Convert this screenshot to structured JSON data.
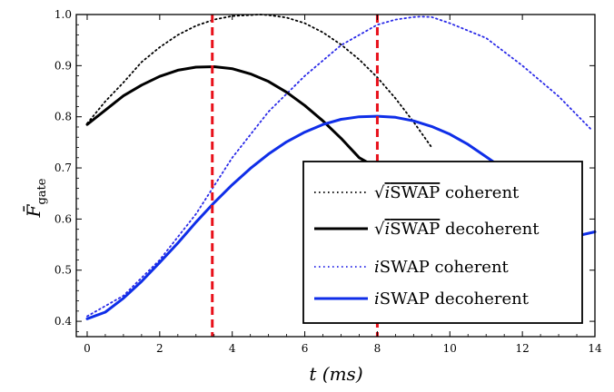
{
  "chart_data": {
    "type": "line",
    "xlabel": "t (ms)",
    "ylabel": "F̄ gate",
    "ylabel_base": "F̄",
    "ylabel_sub": "gate",
    "xlabel_var": "t",
    "xlabel_unit": "(ms)",
    "xlim": [
      -0.3,
      14
    ],
    "ylim": [
      0.37,
      1.0
    ],
    "xticks": [
      0,
      2,
      4,
      6,
      8,
      10,
      12,
      14
    ],
    "yticks": [
      0.4,
      0.5,
      0.6,
      0.7,
      0.8,
      0.9,
      1.0
    ],
    "ytick_labels": [
      "0.4",
      "0.5",
      "0.6",
      "0.7",
      "0.8",
      "0.9",
      "1.0"
    ],
    "grid": false,
    "legend_position": "bottom-right",
    "vlines": [
      {
        "x": 3.45,
        "color": "#e8101a",
        "style": "dashed"
      },
      {
        "x": 8.0,
        "color": "#e8101a",
        "style": "dashed"
      }
    ],
    "series": [
      {
        "name": "√iSWAP coherent",
        "name_radicand_italic": "i",
        "name_radicand_rest": "SWAP",
        "name_suffix": " coherent",
        "radical": true,
        "color": "#000000",
        "style": "dotted",
        "x": [
          0,
          0.5,
          1,
          1.5,
          2,
          2.5,
          3,
          3.5,
          4,
          4.5,
          4.75,
          5,
          5.5,
          6,
          6.5,
          7,
          7.5,
          8,
          8.5,
          9,
          9.5
        ],
        "y": [
          0.787,
          0.83,
          0.867,
          0.907,
          0.936,
          0.96,
          0.978,
          0.99,
          0.997,
          0.999,
          1.0,
          0.999,
          0.994,
          0.983,
          0.965,
          0.941,
          0.912,
          0.877,
          0.836,
          0.79,
          0.74
        ]
      },
      {
        "name": "√iSWAP decoherent",
        "name_radicand_italic": "i",
        "name_radicand_rest": "SWAP",
        "name_suffix": " decoherent",
        "radical": true,
        "color": "#000000",
        "style": "solid",
        "x": [
          0,
          0.5,
          1,
          1.5,
          2,
          2.5,
          3,
          3.5,
          4,
          4.5,
          5,
          5.5,
          6,
          6.5,
          7,
          7.5,
          8,
          8.2
        ],
        "y": [
          0.785,
          0.813,
          0.841,
          0.862,
          0.879,
          0.891,
          0.897,
          0.898,
          0.894,
          0.884,
          0.869,
          0.848,
          0.822,
          0.792,
          0.758,
          0.72,
          0.7,
          0.693
        ]
      },
      {
        "name": "iSWAP coherent",
        "name_italic": "i",
        "name_rest": "SWAP coherent",
        "radical": false,
        "color": "#2a2ae8",
        "style": "dotted",
        "x": [
          0,
          1,
          2,
          3,
          4,
          5,
          6,
          7,
          8,
          8.5,
          9,
          9.2,
          9.5,
          10,
          11,
          12,
          13,
          13.9
        ],
        "y": [
          0.41,
          0.45,
          0.52,
          0.61,
          0.72,
          0.81,
          0.88,
          0.94,
          0.98,
          0.99,
          0.995,
          0.996,
          0.995,
          0.983,
          0.954,
          0.9,
          0.84,
          0.775
        ]
      },
      {
        "name": "iSWAP decoherent",
        "name_italic": "i",
        "name_rest": "SWAP decoherent",
        "radical": false,
        "color": "#0f2ee8",
        "style": "solid",
        "x": [
          0,
          0.5,
          1,
          1.5,
          2,
          2.5,
          3,
          3.5,
          4,
          4.5,
          5,
          5.5,
          6,
          6.5,
          7,
          7.5,
          8,
          8.5,
          9,
          9.5,
          10,
          10.5,
          11,
          11.3,
          13.5,
          14
        ],
        "y": [
          0.405,
          0.418,
          0.445,
          0.478,
          0.515,
          0.553,
          0.594,
          0.632,
          0.667,
          0.699,
          0.727,
          0.751,
          0.77,
          0.785,
          0.795,
          0.8,
          0.801,
          0.799,
          0.792,
          0.781,
          0.766,
          0.746,
          0.722,
          0.707,
          0.567,
          0.575
        ]
      }
    ]
  }
}
